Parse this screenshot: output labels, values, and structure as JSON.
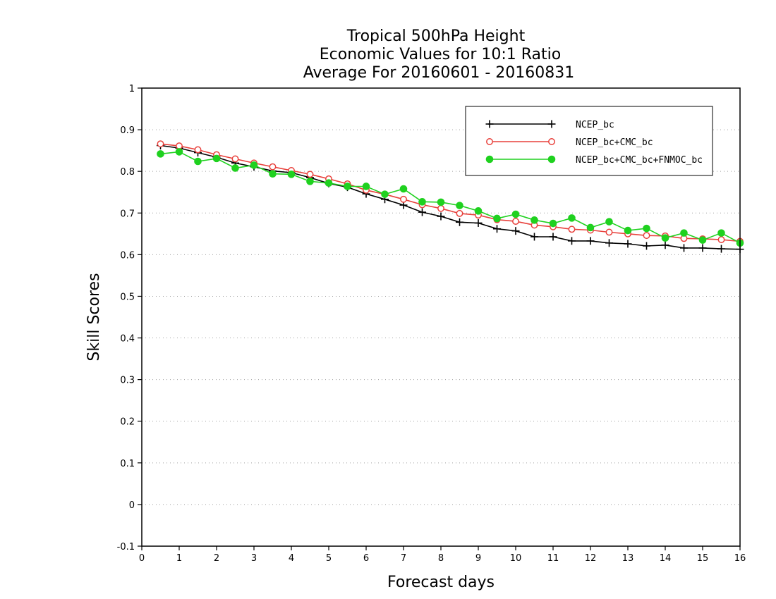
{
  "chart_data": {
    "type": "line",
    "title_lines": [
      "Tropical 500hPa Height",
      "Economic Values for 10:1 Ratio",
      "Average For 20160601 - 20160831"
    ],
    "xlabel": "Forecast days",
    "ylabel": "Skill Scores",
    "xlim": [
      0,
      16
    ],
    "ylim": [
      -0.1,
      1
    ],
    "x_ticks": [
      0,
      1,
      2,
      3,
      4,
      5,
      6,
      7,
      8,
      9,
      10,
      11,
      12,
      13,
      14,
      15,
      16
    ],
    "x_tick_labels": [
      "0",
      "1",
      "2",
      "3",
      "4",
      "5",
      "6",
      "7",
      "8",
      "9",
      "10",
      "11",
      "12",
      "13",
      "14",
      "15",
      "16"
    ],
    "y_ticks": [
      -0.1,
      0,
      0.1,
      0.2,
      0.3,
      0.4,
      0.5,
      0.6,
      0.7,
      0.8,
      0.9,
      1
    ],
    "y_tick_labels": [
      "-0.1",
      "0",
      "0.1",
      "0.2",
      "0.3",
      "0.4",
      "0.5",
      "0.6",
      "0.7",
      "0.8",
      "0.9",
      "1"
    ],
    "grid": "horizontal-dotted",
    "legend_position": "top-right",
    "x": [
      0.5,
      1,
      1.5,
      2,
      2.5,
      3,
      3.5,
      4,
      4.5,
      5,
      5.5,
      6,
      6.5,
      7,
      7.5,
      8,
      8.5,
      9,
      9.5,
      10,
      10.5,
      11,
      11.5,
      12,
      12.5,
      13,
      13.5,
      14,
      14.5,
      15,
      15.5,
      16
    ],
    "series": [
      {
        "name": "NCEP_bc",
        "color": "#000000",
        "marker": "plus",
        "values": [
          0.862,
          0.856,
          0.845,
          0.834,
          0.82,
          0.811,
          0.801,
          0.797,
          0.785,
          0.771,
          0.762,
          0.746,
          0.733,
          0.719,
          0.702,
          0.692,
          0.678,
          0.676,
          0.662,
          0.657,
          0.643,
          0.643,
          0.633,
          0.633,
          0.628,
          0.626,
          0.621,
          0.623,
          0.616,
          0.616,
          0.614,
          0.613
        ]
      },
      {
        "name": "NCEP_bc+CMC_bc",
        "color": "#e8413c",
        "marker": "open-circle",
        "values": [
          0.866,
          0.861,
          0.852,
          0.84,
          0.83,
          0.82,
          0.811,
          0.802,
          0.793,
          0.782,
          0.77,
          0.755,
          0.745,
          0.733,
          0.72,
          0.711,
          0.699,
          0.695,
          0.684,
          0.68,
          0.671,
          0.667,
          0.661,
          0.659,
          0.654,
          0.65,
          0.646,
          0.645,
          0.639,
          0.638,
          0.636,
          0.632
        ]
      },
      {
        "name": "NCEP_bc+CMC_bc+FNMOC_bc",
        "color": "#1fd11f",
        "marker": "filled-circle",
        "values": [
          0.842,
          0.847,
          0.824,
          0.831,
          0.808,
          0.815,
          0.794,
          0.793,
          0.776,
          0.772,
          0.764,
          0.764,
          0.745,
          0.758,
          0.727,
          0.726,
          0.718,
          0.705,
          0.687,
          0.697,
          0.683,
          0.675,
          0.688,
          0.665,
          0.679,
          0.658,
          0.663,
          0.64,
          0.652,
          0.635,
          0.652,
          0.628
        ]
      }
    ]
  }
}
